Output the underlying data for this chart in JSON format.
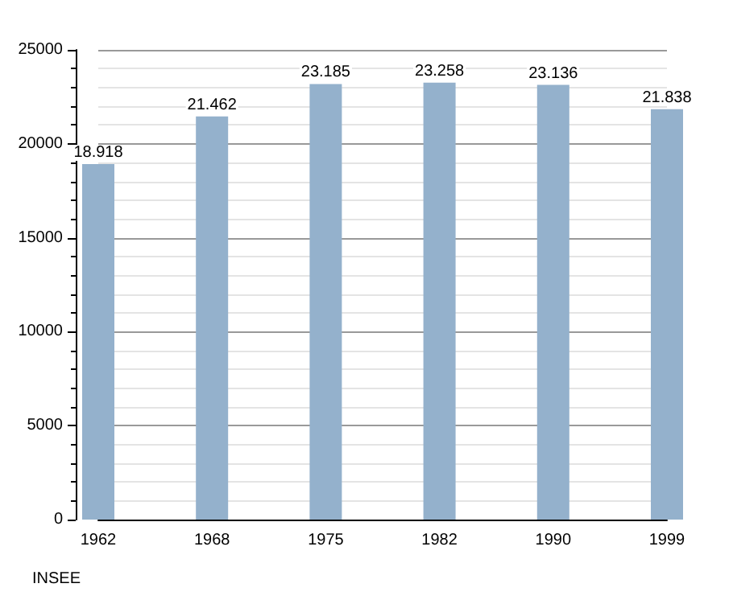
{
  "chart_data": {
    "type": "bar",
    "categories": [
      "1962",
      "1968",
      "1975",
      "1982",
      "1990",
      "1999"
    ],
    "values": [
      18918,
      21462,
      23185,
      23258,
      23136,
      21838
    ],
    "value_labels": [
      "18.918",
      "21.462",
      "23.185",
      "23.258",
      "23.136",
      "21.838"
    ],
    "color": "#94b1cc",
    "ylim": [
      0,
      25000
    ],
    "yticks": [
      0,
      5000,
      10000,
      15000,
      20000,
      25000
    ],
    "grid": true,
    "annotations": [
      "INSEE"
    ]
  }
}
